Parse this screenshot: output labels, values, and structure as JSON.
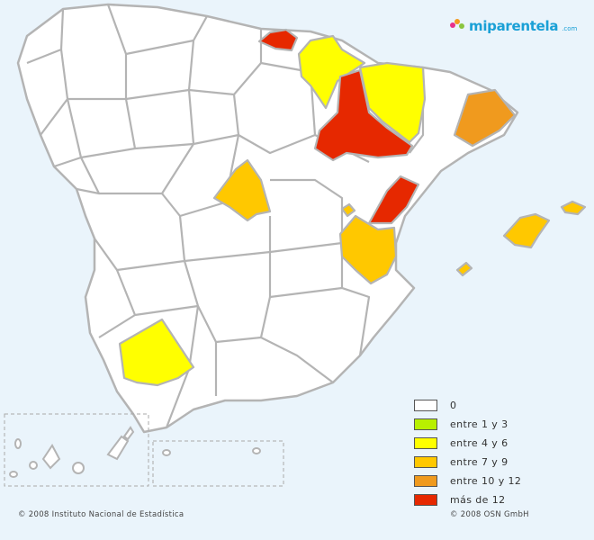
{
  "logo": {
    "text": "miparentela",
    "domain": ".com",
    "colors": [
      "#e8308a",
      "#f39a1e",
      "#8bc53f",
      "#1aa0d6"
    ]
  },
  "legend": [
    {
      "label": "0",
      "color": "#ffffff"
    },
    {
      "label": "entre 1 y 3",
      "color": "#b8f000"
    },
    {
      "label": "entre 4 y 6",
      "color": "#ffff00"
    },
    {
      "label": "entre 7 y 9",
      "color": "#ffc800"
    },
    {
      "label": "entre 10 y 12",
      "color": "#f09a1e"
    },
    {
      "label": "más de 12",
      "color": "#e62800"
    }
  ],
  "credits": {
    "left": "© 2008 Instituto Nacional de Estadística",
    "right": "© 2008 OSN GmbH"
  },
  "colors": {
    "background": "#eaf4fb",
    "province_border": "#b4b4b4",
    "empty": "#ffffff"
  }
}
